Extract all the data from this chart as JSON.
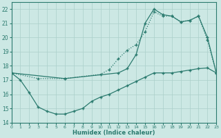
{
  "xlabel": "Humidex (Indice chaleur)",
  "xlim": [
    0,
    23
  ],
  "ylim": [
    14,
    22.5
  ],
  "yticks": [
    14,
    15,
    16,
    17,
    18,
    19,
    20,
    21,
    22
  ],
  "xticks": [
    0,
    1,
    2,
    3,
    4,
    5,
    6,
    7,
    8,
    9,
    10,
    11,
    12,
    13,
    14,
    15,
    16,
    17,
    18,
    19,
    20,
    21,
    22,
    23
  ],
  "line_color": "#2a7a6e",
  "bg_color": "#cce8e4",
  "grid_color": "#aacfca",
  "line1_x": [
    0,
    1,
    2,
    3,
    4,
    5,
    6,
    7,
    8,
    9,
    10,
    11,
    12,
    13,
    14,
    15,
    16,
    17,
    18,
    19,
    20,
    21,
    22,
    23
  ],
  "line1_y": [
    17.5,
    17.0,
    16.1,
    15.1,
    14.8,
    14.6,
    14.6,
    14.8,
    15.0,
    15.5,
    15.8,
    16.0,
    16.3,
    16.6,
    16.9,
    17.2,
    17.5,
    17.5,
    17.5,
    17.6,
    17.7,
    17.8,
    17.85,
    17.5
  ],
  "line2_x": [
    0,
    3,
    6,
    10,
    11,
    12,
    13,
    14,
    15,
    16,
    17,
    18,
    19,
    20,
    21,
    22,
    23
  ],
  "line2_y": [
    17.5,
    17.1,
    17.1,
    17.4,
    17.75,
    18.5,
    19.1,
    19.5,
    20.4,
    21.8,
    21.5,
    21.5,
    21.1,
    21.2,
    21.5,
    19.8,
    17.5
  ],
  "line3_x": [
    0,
    6,
    12,
    13,
    14,
    15,
    16,
    17,
    18,
    19,
    20,
    21,
    22,
    23
  ],
  "line3_y": [
    17.5,
    17.1,
    17.5,
    17.8,
    18.8,
    21.0,
    22.0,
    21.6,
    21.5,
    21.1,
    21.2,
    21.5,
    20.0,
    17.5
  ],
  "line1_style": "-",
  "line2_style": "--",
  "line3_style": "-",
  "marker": "+",
  "markersize": 3.5,
  "linewidth": 0.9
}
